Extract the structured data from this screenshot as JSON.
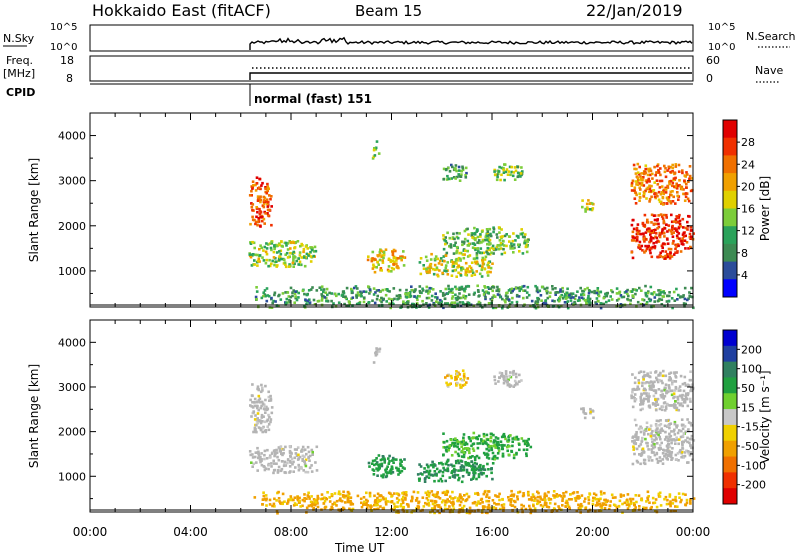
{
  "header": {
    "title": "Hokkaido East (fitACF)",
    "beam": "Beam 15",
    "date": "22/Jan/2019"
  },
  "top_panels": {
    "nsky_label": "N.Sky",
    "nsearch_label": "N.Search",
    "freq_label": "Freq.",
    "freq_unit": "[MHz]",
    "nave_label": "Nave",
    "cpid_label": "CPID",
    "noise_ticks": [
      "10^5",
      "10^0"
    ],
    "freq_ticks": [
      "18",
      "8"
    ],
    "nave_ticks": [
      "60",
      "0"
    ],
    "cpid_text": "normal (fast) 151"
  },
  "colors": {
    "power_scale": [
      "#0000ff",
      "#2b4c9a",
      "#3c8a52",
      "#2aa25a",
      "#7ccd3a",
      "#e0d000",
      "#f0a000",
      "#f07000",
      "#f03000",
      "#e00000"
    ],
    "velocity_scale": [
      "#0000d0",
      "#2040a0",
      "#308060",
      "#20a040",
      "#70d030",
      "#c8c8c8",
      "#f0d000",
      "#f0a000",
      "#f07000",
      "#f03000",
      "#e00000"
    ],
    "ground_scatter": "#b4b4b4"
  },
  "chart_data": [
    {
      "type": "heatmap",
      "panel": "power",
      "xlabel": "Time UT",
      "ylabel": "Slant Range [km]",
      "colorbar_label": "Power [dB]",
      "colorbar_ticks": [
        "28",
        "24",
        "20",
        "16",
        "12",
        "8",
        "4"
      ],
      "x_ticks": [
        "00:00",
        "04:00",
        "08:00",
        "12:00",
        "16:00",
        "20:00",
        "00:00"
      ],
      "xlim_hours": [
        0,
        24
      ],
      "ylim_km": [
        200,
        4500
      ],
      "y_ticks": [
        1000,
        2000,
        3000,
        4000
      ],
      "scatter_regions": [
        {
          "t0": 6.3,
          "t1": 7.2,
          "r0": 2000,
          "r1": 3100,
          "value": 24
        },
        {
          "t0": 6.3,
          "t1": 9.0,
          "r0": 1100,
          "r1": 1700,
          "value": 14
        },
        {
          "t0": 11.2,
          "t1": 11.5,
          "r0": 3500,
          "r1": 3900,
          "value": 14
        },
        {
          "t0": 11.0,
          "t1": 12.5,
          "r0": 1000,
          "r1": 1500,
          "value": 18
        },
        {
          "t0": 13.0,
          "t1": 16.0,
          "r0": 900,
          "r1": 1400,
          "value": 16
        },
        {
          "t0": 14.0,
          "t1": 17.5,
          "r0": 1400,
          "r1": 2000,
          "value": 12
        },
        {
          "t0": 14.0,
          "t1": 15.0,
          "r0": 3000,
          "r1": 3400,
          "value": 10
        },
        {
          "t0": 16.0,
          "t1": 17.2,
          "r0": 3000,
          "r1": 3400,
          "value": 12
        },
        {
          "t0": 19.5,
          "t1": 20.0,
          "r0": 2300,
          "r1": 2600,
          "value": 16
        },
        {
          "t0": 21.5,
          "t1": 24.0,
          "r0": 2500,
          "r1": 3400,
          "value": 22
        },
        {
          "t0": 21.5,
          "t1": 24.0,
          "r0": 1300,
          "r1": 2300,
          "value": 26
        },
        {
          "t0": 6.5,
          "t1": 24.0,
          "r0": 200,
          "r1": 700,
          "value": 10
        }
      ]
    },
    {
      "type": "heatmap",
      "panel": "velocity",
      "xlabel": "Time UT",
      "ylabel": "Slant Range [km]",
      "colorbar_label": "Velocity [m s⁻¹]",
      "colorbar_ticks": [
        "200",
        "100",
        "50",
        "15",
        "-15",
        "-50",
        "-100",
        "-200"
      ],
      "x_ticks": [
        "00:00",
        "04:00",
        "08:00",
        "12:00",
        "16:00",
        "20:00",
        "00:00"
      ],
      "xlim_hours": [
        0,
        24
      ],
      "ylim_km": [
        200,
        4500
      ],
      "y_ticks": [
        1000,
        2000,
        3000,
        4000
      ],
      "scatter_regions": [
        {
          "t0": 6.3,
          "t1": 7.2,
          "r0": 2000,
          "r1": 3100,
          "value": 0
        },
        {
          "t0": 6.3,
          "t1": 9.0,
          "r0": 1100,
          "r1": 1700,
          "value": 0
        },
        {
          "t0": 11.2,
          "t1": 11.5,
          "r0": 3500,
          "r1": 3900,
          "value": 0
        },
        {
          "t0": 11.0,
          "t1": 12.5,
          "r0": 1000,
          "r1": 1500,
          "value": 60
        },
        {
          "t0": 13.0,
          "t1": 16.0,
          "r0": 900,
          "r1": 1400,
          "value": 70
        },
        {
          "t0": 14.0,
          "t1": 17.5,
          "r0": 1400,
          "r1": 2000,
          "value": 40
        },
        {
          "t0": 14.0,
          "t1": 15.0,
          "r0": 3000,
          "r1": 3400,
          "value": -30
        },
        {
          "t0": 16.0,
          "t1": 17.2,
          "r0": 3000,
          "r1": 3400,
          "value": 0
        },
        {
          "t0": 19.5,
          "t1": 20.0,
          "r0": 2300,
          "r1": 2600,
          "value": 0
        },
        {
          "t0": 21.5,
          "t1": 24.0,
          "r0": 2500,
          "r1": 3400,
          "value": 0
        },
        {
          "t0": 21.5,
          "t1": 24.0,
          "r0": 1300,
          "r1": 2300,
          "value": 0
        },
        {
          "t0": 6.5,
          "t1": 24.0,
          "r0": 200,
          "r1": 700,
          "value": -40
        }
      ]
    }
  ]
}
